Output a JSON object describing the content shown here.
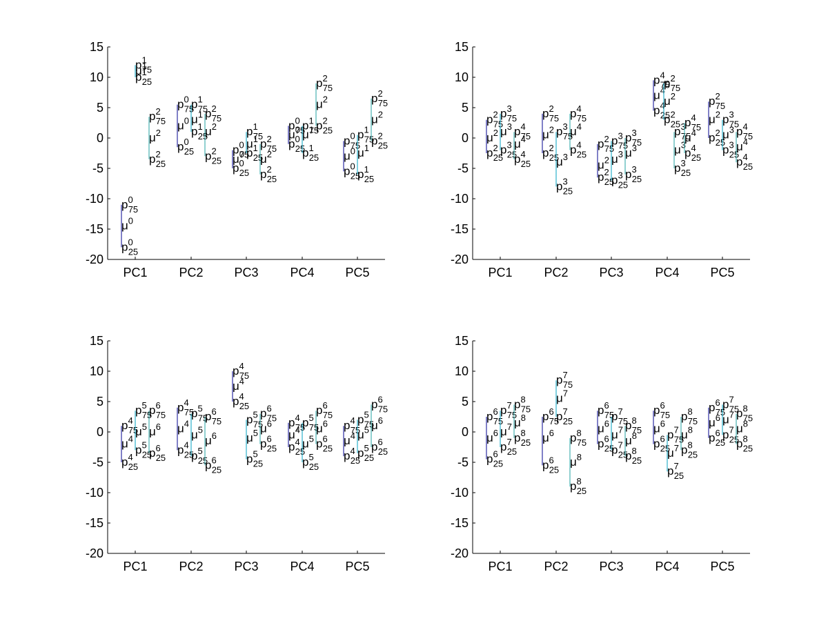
{
  "chart_data": [
    {
      "type": "whisker",
      "ylim": [
        -20,
        15
      ],
      "yticks": [
        "15",
        "10",
        "5",
        "0",
        "-5",
        "-10",
        "-15",
        "-20"
      ],
      "categories": [
        "PC1",
        "PC2",
        "PC3",
        "PC4",
        "PC5"
      ],
      "groups": [
        {
          "category": "PC1",
          "markers": [
            {
              "id": "0",
              "p75": -11.0,
              "mu": -14.5,
              "p25": -18.0
            },
            {
              "id": "1",
              "p75": 12.0,
              "mu": 11.0,
              "p25": 10.0
            },
            {
              "id": "2",
              "p75": 3.5,
              "mu": 0.0,
              "p25": -3.5
            }
          ]
        },
        {
          "category": "PC2",
          "markers": [
            {
              "id": "0",
              "p75": 5.5,
              "mu": 2.0,
              "p25": -1.5
            },
            {
              "id": "1",
              "p75": 5.5,
              "mu": 3.0,
              "p25": 1.0
            },
            {
              "id": "2",
              "p75": 4.0,
              "mu": 1.0,
              "p25": -3.0
            }
          ]
        },
        {
          "category": "PC3",
          "markers": [
            {
              "id": "0",
              "p75": -2.0,
              "mu": -3.5,
              "p25": -5.0
            },
            {
              "id": "1",
              "p75": 1.0,
              "mu": -1.0,
              "p25": -2.5
            },
            {
              "id": "2",
              "p75": -1.0,
              "mu": -3.5,
              "p25": -6.0
            }
          ]
        },
        {
          "category": "PC4",
          "markers": [
            {
              "id": "0",
              "p75": 2.0,
              "mu": 0.5,
              "p25": -1.0
            },
            {
              "id": "1",
              "p75": 2.0,
              "mu": 0.5,
              "p25": -2.5
            },
            {
              "id": "2",
              "p75": 9.0,
              "mu": 5.5,
              "p25": 2.0
            }
          ]
        },
        {
          "category": "PC5",
          "markers": [
            {
              "id": "0",
              "p75": -0.5,
              "mu": -3.0,
              "p25": -5.5
            },
            {
              "id": "1",
              "p75": 0.5,
              "mu": -2.5,
              "p25": -6.0
            },
            {
              "id": "2",
              "p75": 6.5,
              "mu": 3.0,
              "p25": -0.5
            }
          ]
        }
      ]
    },
    {
      "type": "whisker",
      "ylim": [
        -20,
        15
      ],
      "yticks": [
        "15",
        "10",
        "5",
        "0",
        "-5",
        "-10",
        "-15",
        "-20"
      ],
      "categories": [
        "PC1",
        "PC2",
        "PC3",
        "PC4",
        "PC5"
      ],
      "groups": [
        {
          "category": "PC1",
          "markers": [
            {
              "id": "2",
              "p75": 3.0,
              "mu": 0.0,
              "p25": -2.5
            },
            {
              "id": "3",
              "p75": 4.0,
              "mu": 1.0,
              "p25": -2.0
            },
            {
              "id": "4",
              "p75": 1.0,
              "mu": -1.0,
              "p25": -3.5
            }
          ]
        },
        {
          "category": "PC2",
          "markers": [
            {
              "id": "2",
              "p75": 4.0,
              "mu": 0.5,
              "p25": -2.5
            },
            {
              "id": "3",
              "p75": 1.0,
              "mu": -4.0,
              "p25": -8.0
            },
            {
              "id": "4",
              "p75": 4.0,
              "mu": 1.0,
              "p25": -2.0
            }
          ]
        },
        {
          "category": "PC3",
          "markers": [
            {
              "id": "2",
              "p75": -1.0,
              "mu": -4.5,
              "p25": -6.5
            },
            {
              "id": "3",
              "p75": -0.5,
              "mu": -3.5,
              "p25": -7.0
            },
            {
              "id": "3",
              "p75": 0.0,
              "mu": -2.5,
              "p25": -6.0
            }
          ]
        },
        {
          "category": "PC4",
          "markers": [
            {
              "id": "4",
              "p75": 9.5,
              "mu": 7.0,
              "p25": 4.5
            },
            {
              "id": "2",
              "p75": 9.0,
              "mu": 6.0,
              "p25": 3.0
            },
            {
              "id": "3",
              "p75": 1.0,
              "mu": -2.0,
              "p25": -5.0
            },
            {
              "id": "4",
              "p75": 2.5,
              "mu": 0.0,
              "p25": -2.5
            }
          ]
        },
        {
          "category": "PC5",
          "markers": [
            {
              "id": "2",
              "p75": 6.0,
              "mu": 3.0,
              "p25": 0.0
            },
            {
              "id": "3",
              "p75": 3.0,
              "mu": 0.5,
              "p25": -2.0
            },
            {
              "id": "4",
              "p75": 1.0,
              "mu": -1.5,
              "p25": -4.0
            }
          ]
        }
      ]
    },
    {
      "type": "whisker",
      "ylim": [
        -20,
        15
      ],
      "yticks": [
        "15",
        "10",
        "5",
        "0",
        "-5",
        "-10",
        "-15",
        "-20"
      ],
      "categories": [
        "PC1",
        "PC2",
        "PC3",
        "PC4",
        "PC5"
      ],
      "groups": [
        {
          "category": "PC1",
          "markers": [
            {
              "id": "4",
              "p75": 1.0,
              "mu": -2.0,
              "p25": -5.0
            },
            {
              "id": "5",
              "p75": 3.5,
              "mu": 0.0,
              "p25": -3.0
            },
            {
              "id": "6",
              "p75": 3.5,
              "mu": 0.0,
              "p25": -3.5
            }
          ]
        },
        {
          "category": "PC2",
          "markers": [
            {
              "id": "4",
              "p75": 4.0,
              "mu": 0.5,
              "p25": -3.0
            },
            {
              "id": "5",
              "p75": 3.0,
              "mu": -0.5,
              "p25": -4.0
            },
            {
              "id": "6",
              "p75": 2.5,
              "mu": -1.5,
              "p25": -5.5
            }
          ]
        },
        {
          "category": "PC3",
          "markers": [
            {
              "id": "4",
              "p75": 10.0,
              "mu": 7.5,
              "p25": 5.0
            },
            {
              "id": "5",
              "p75": 2.0,
              "mu": -1.0,
              "p25": -4.5
            },
            {
              "id": "6",
              "p75": 3.0,
              "mu": 0.5,
              "p25": -2.0
            }
          ]
        },
        {
          "category": "PC4",
          "markers": [
            {
              "id": "4",
              "p75": 1.5,
              "mu": -0.5,
              "p25": -2.5
            },
            {
              "id": "5",
              "p75": 1.5,
              "mu": -2.0,
              "p25": -5.0
            },
            {
              "id": "6",
              "p75": 3.5,
              "mu": 0.5,
              "p25": -2.0
            }
          ]
        },
        {
          "category": "PC5",
          "markers": [
            {
              "id": "4",
              "p75": 1.0,
              "mu": -1.5,
              "p25": -4.0
            },
            {
              "id": "5",
              "p75": 2.0,
              "mu": -0.5,
              "p25": -3.5
            },
            {
              "id": "6",
              "p75": 4.5,
              "mu": 1.0,
              "p25": -2.5
            }
          ]
        }
      ]
    },
    {
      "type": "whisker",
      "ylim": [
        -20,
        15
      ],
      "yticks": [
        "15",
        "10",
        "5",
        "0",
        "-5",
        "-10",
        "-15",
        "-20"
      ],
      "categories": [
        "PC1",
        "PC2",
        "PC3",
        "PC4",
        "PC5"
      ],
      "groups": [
        {
          "category": "PC1",
          "markers": [
            {
              "id": "6",
              "p75": 2.5,
              "mu": -1.0,
              "p25": -4.5
            },
            {
              "id": "7",
              "p75": 3.5,
              "mu": 0.0,
              "p25": -2.5
            },
            {
              "id": "8",
              "p75": 4.5,
              "mu": 1.5,
              "p25": -1.0
            }
          ]
        },
        {
          "category": "PC2",
          "markers": [
            {
              "id": "6",
              "p75": 2.5,
              "mu": -1.0,
              "p25": -5.5
            },
            {
              "id": "7",
              "p75": 8.5,
              "mu": 5.5,
              "p25": 2.5
            },
            {
              "id": "8",
              "p75": -1.0,
              "mu": -5.0,
              "p25": -9.0
            }
          ]
        },
        {
          "category": "PC3",
          "markers": [
            {
              "id": "6",
              "p75": 3.5,
              "mu": 0.5,
              "p25": -2.0
            },
            {
              "id": "7",
              "p75": 2.5,
              "mu": -0.5,
              "p25": -3.0
            },
            {
              "id": "8",
              "p75": 1.0,
              "mu": -1.5,
              "p25": -4.0
            }
          ]
        },
        {
          "category": "PC4",
          "markers": [
            {
              "id": "6",
              "p75": 3.5,
              "mu": 0.5,
              "p25": -2.0
            },
            {
              "id": "7",
              "p75": -0.5,
              "mu": -3.5,
              "p25": -6.5
            },
            {
              "id": "8",
              "p75": 2.5,
              "mu": -0.5,
              "p25": -3.0
            }
          ]
        },
        {
          "category": "PC5",
          "markers": [
            {
              "id": "6",
              "p75": 4.0,
              "mu": 1.5,
              "p25": -1.0
            },
            {
              "id": "7",
              "p75": 4.5,
              "mu": 2.0,
              "p25": -0.5
            },
            {
              "id": "8",
              "p75": 3.0,
              "mu": 0.5,
              "p25": -2.0
            }
          ]
        }
      ]
    }
  ]
}
